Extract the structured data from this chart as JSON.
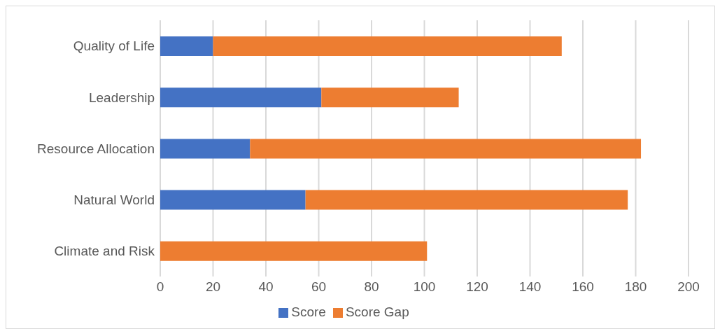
{
  "chart_data": {
    "type": "bar",
    "orientation": "horizontal",
    "stacked": true,
    "categories": [
      "Quality of Life",
      "Leadership",
      "Resource Allocation",
      "Natural World",
      "Climate and Risk"
    ],
    "series": [
      {
        "name": "Score",
        "color": "#4472c4",
        "values": [
          20,
          61,
          34,
          55,
          0
        ]
      },
      {
        "name": "Score Gap",
        "color": "#ed7d31",
        "values": [
          132,
          52,
          148,
          122,
          101
        ]
      }
    ],
    "xlim": [
      0,
      200
    ],
    "xticks": [
      0,
      20,
      40,
      60,
      80,
      100,
      120,
      140,
      160,
      180,
      200
    ],
    "grid": "x",
    "legend": "bottom"
  }
}
